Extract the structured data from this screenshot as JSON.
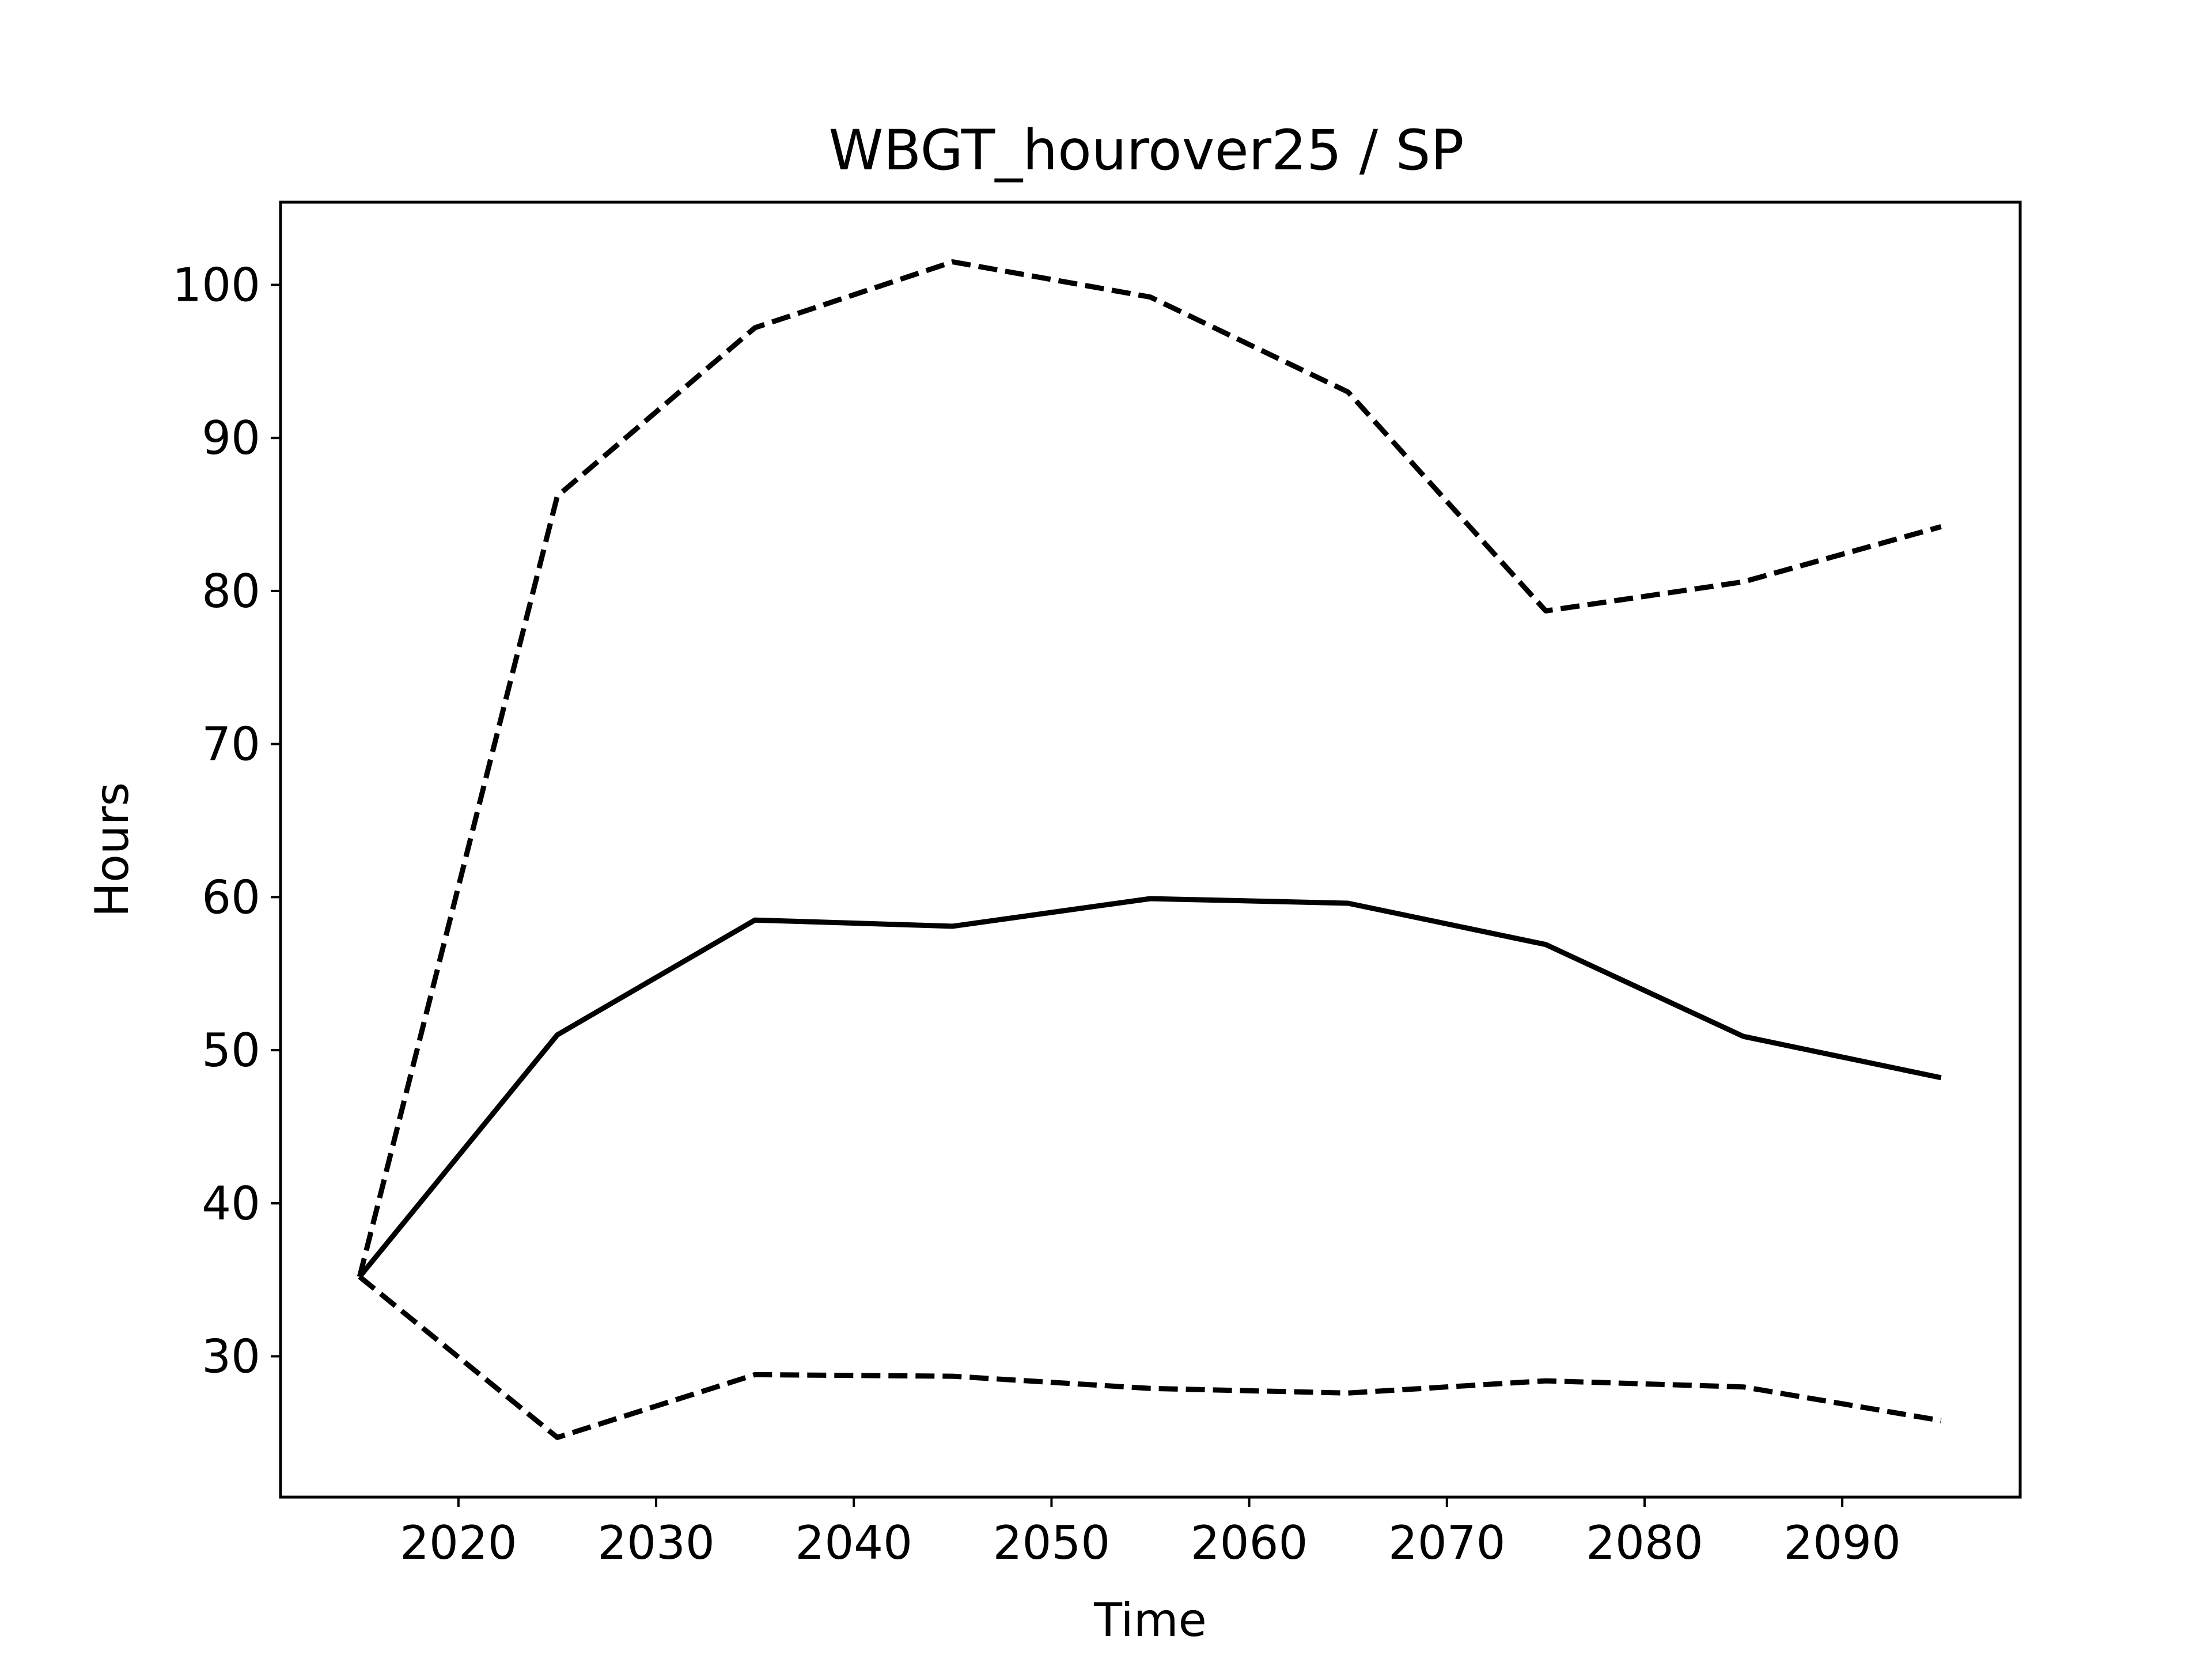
{
  "chart_data": {
    "type": "line",
    "title": "WBGT_hourover25 / SP",
    "xlabel": "Time",
    "ylabel": "Hours",
    "xlim": [
      2011,
      2099
    ],
    "ylim": [
      20.8,
      105.4
    ],
    "xticks": [
      2020,
      2030,
      2040,
      2050,
      2060,
      2070,
      2080,
      2090
    ],
    "yticks": [
      30,
      40,
      50,
      60,
      70,
      80,
      90,
      100
    ],
    "grid": false,
    "legend": "none",
    "x": [
      2015,
      2025,
      2035,
      2045,
      2055,
      2065,
      2075,
      2085,
      2095
    ],
    "series": [
      {
        "style": "dashed",
        "color": "#000000",
        "values": [
          35.2,
          86.2,
          97.2,
          101.5,
          99.2,
          93.0,
          78.7,
          80.6,
          84.2
        ]
      },
      {
        "style": "solid",
        "color": "#000000",
        "values": [
          35.2,
          51.0,
          58.5,
          58.1,
          59.9,
          59.6,
          56.9,
          50.9,
          48.2
        ]
      },
      {
        "style": "dashed",
        "color": "#000000",
        "values": [
          35.2,
          24.7,
          28.8,
          28.7,
          27.9,
          27.6,
          28.4,
          28.0,
          25.8
        ]
      }
    ]
  }
}
